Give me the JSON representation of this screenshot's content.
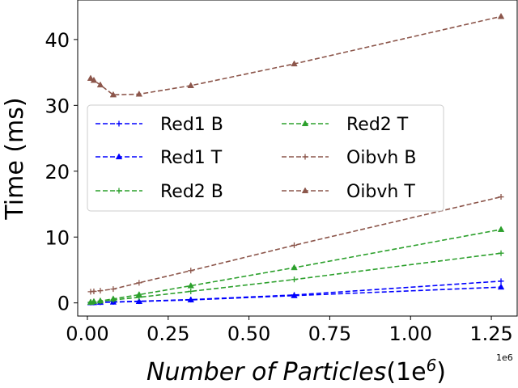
{
  "chart_data": {
    "type": "line",
    "title": "",
    "xlabel": "Number of Particles",
    "xlabel_suffix": "(1e",
    "xlabel_exp": "6",
    "xlabel_close": ")",
    "ylabel": "Time (ms)",
    "x_offset_label": "1e6",
    "xlim": [
      -0.03,
      1.33
    ],
    "ylim": [
      -2,
      46
    ],
    "xticks": [
      0.0,
      0.25,
      0.5,
      0.75,
      1.0,
      1.25
    ],
    "xtick_labels": [
      "0.00",
      "0.25",
      "0.50",
      "0.75",
      "1.00",
      "1.25"
    ],
    "yticks": [
      0,
      10,
      20,
      30,
      40
    ],
    "ytick_labels": [
      "0",
      "10",
      "20",
      "30",
      "40"
    ],
    "x": [
      0.01,
      0.02,
      0.04,
      0.08,
      0.16,
      0.32,
      0.64,
      1.28
    ],
    "legend_position": "center-left",
    "series": [
      {
        "name": "Red1 B",
        "color": "#0000ff",
        "marker": "plus",
        "values": [
          0.05,
          0.07,
          0.1,
          0.15,
          0.25,
          0.5,
          1.2,
          3.3
        ]
      },
      {
        "name": "Red1 T",
        "color": "#0000ff",
        "marker": "triangle",
        "values": [
          0.03,
          0.05,
          0.08,
          0.12,
          0.22,
          0.45,
          1.1,
          2.4
        ]
      },
      {
        "name": "Red2 B",
        "color": "#2ca02c",
        "marker": "plus",
        "values": [
          0.1,
          0.15,
          0.25,
          0.45,
          0.85,
          1.75,
          3.55,
          7.55
        ]
      },
      {
        "name": "Red2 T",
        "color": "#2ca02c",
        "marker": "triangle",
        "values": [
          0.1,
          0.2,
          0.3,
          0.6,
          1.25,
          2.6,
          5.35,
          11.15
        ]
      },
      {
        "name": "Oibvh B",
        "color": "#8c564b",
        "marker": "plus",
        "values": [
          1.7,
          1.75,
          1.85,
          2.1,
          3.05,
          4.9,
          8.75,
          16.1
        ]
      },
      {
        "name": "Oibvh T",
        "color": "#8c564b",
        "marker": "triangle",
        "values": [
          34.1,
          33.8,
          33.1,
          31.6,
          31.7,
          33.0,
          36.3,
          43.5
        ]
      }
    ]
  }
}
